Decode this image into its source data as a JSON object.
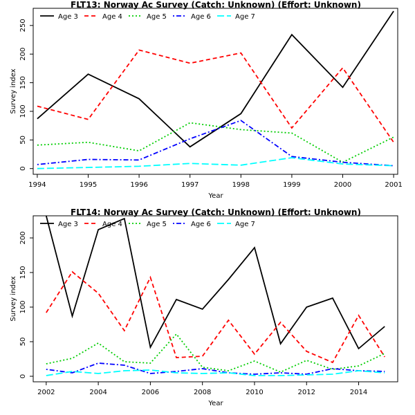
{
  "chart_data": [
    {
      "type": "line",
      "title": "FLT13: Norway Ac Survey (Catch: Unknown) (Effort: Unknown)",
      "xlabel": "Year",
      "ylabel": "Survey index",
      "xlim": [
        1993.92,
        2001.08
      ],
      "ylim": [
        -10,
        280
      ],
      "xticks": [
        1994,
        1995,
        1996,
        1997,
        1998,
        1999,
        2000,
        2001
      ],
      "yticks": [
        0,
        50,
        100,
        150,
        200,
        250
      ],
      "legend_position": "top-left, horizontal",
      "x": [
        1994,
        1995,
        1996,
        1997,
        1998,
        1999,
        2000,
        2001
      ],
      "series": [
        {
          "name": "Age 3",
          "color": "#000000",
          "dash": "solid",
          "values": [
            87,
            165,
            122,
            38,
            96,
            234,
            142,
            275
          ]
        },
        {
          "name": "Age 4",
          "color": "#ff0000",
          "dash": "dashed",
          "values": [
            109,
            86,
            207,
            184,
            202,
            71,
            176,
            46
          ]
        },
        {
          "name": "Age 5",
          "color": "#00cd00",
          "dash": "dotted",
          "values": [
            41,
            46,
            31,
            80,
            68,
            62,
            11,
            55
          ]
        },
        {
          "name": "Age 6",
          "color": "#0000ff",
          "dash": "dotdash",
          "values": [
            7,
            16,
            15,
            52,
            84,
            21,
            11,
            5
          ]
        },
        {
          "name": "Age 7",
          "color": "#00ffff",
          "dash": "longdash",
          "values": [
            0,
            2,
            4,
            9,
            6,
            19,
            8,
            5
          ]
        }
      ]
    },
    {
      "type": "line",
      "title": "FLT14: Norway Ac Survey (Catch: Unknown) (Effort: Unknown)",
      "xlabel": "Year",
      "ylabel": "Survey index",
      "xlim": [
        2001.5,
        2015.5
      ],
      "ylim": [
        -8,
        232
      ],
      "xticks": [
        2002,
        2004,
        2006,
        2008,
        2010,
        2012,
        2014
      ],
      "yticks": [
        0,
        50,
        100,
        150,
        200
      ],
      "legend_position": "top-left, horizontal",
      "x": [
        2002,
        2003,
        2004,
        2005,
        2006,
        2007,
        2008,
        2009,
        2010,
        2011,
        2012,
        2013,
        2014,
        2015
      ],
      "series": [
        {
          "name": "Age 3",
          "color": "#000000",
          "dash": "solid",
          "values": [
            232,
            87,
            212,
            228,
            42,
            111,
            97,
            140,
            186,
            47,
            100,
            113,
            40,
            72
          ]
        },
        {
          "name": "Age 4",
          "color": "#ff0000",
          "dash": "dashed",
          "values": [
            92,
            151,
            120,
            66,
            143,
            27,
            29,
            81,
            32,
            78,
            36,
            20,
            88,
            28
          ]
        },
        {
          "name": "Age 5",
          "color": "#00cd00",
          "dash": "dotted",
          "values": [
            18,
            26,
            48,
            21,
            19,
            61,
            13,
            8,
            22,
            6,
            23,
            10,
            15,
            33
          ]
        },
        {
          "name": "Age 6",
          "color": "#0000ff",
          "dash": "dotdash",
          "values": [
            10,
            5,
            19,
            16,
            4,
            7,
            11,
            5,
            3,
            5,
            3,
            11,
            8,
            7
          ]
        },
        {
          "name": "Age 7",
          "color": "#00ffff",
          "dash": "longdash",
          "values": [
            1,
            7,
            4,
            8,
            9,
            5,
            4,
            5,
            1,
            1,
            2,
            3,
            8,
            5
          ]
        }
      ]
    }
  ]
}
